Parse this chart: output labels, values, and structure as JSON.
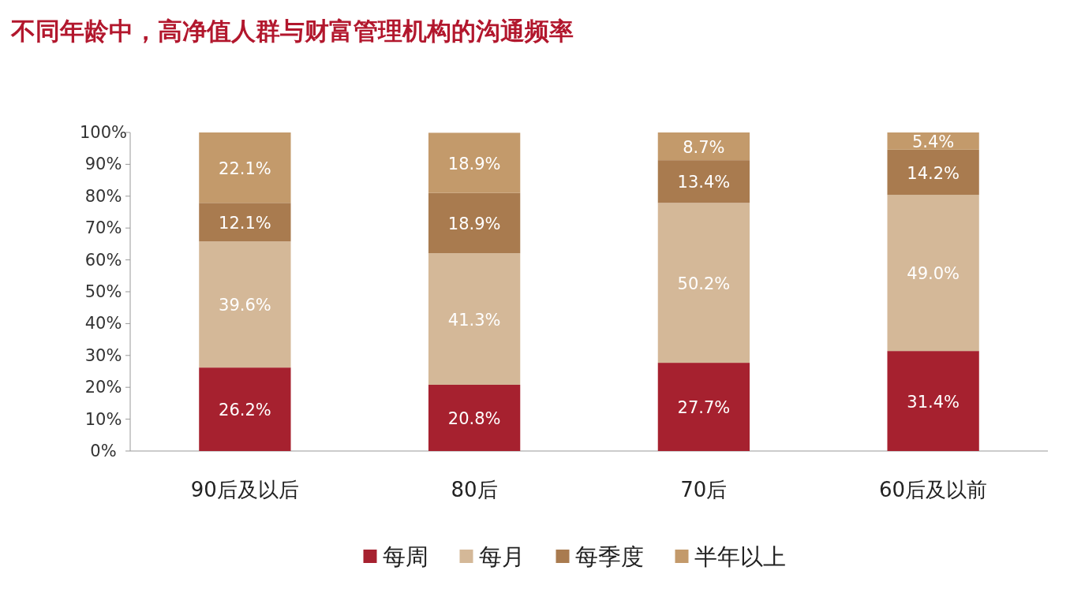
{
  "chart_data": {
    "type": "bar",
    "stacked": true,
    "title": "不同年龄中，高净值人群与财富管理机构的沟通频率",
    "categories": [
      "90后及以后",
      "80后",
      "70后",
      "60后及以前"
    ],
    "series": [
      {
        "name": "每周",
        "color": "#a6212f",
        "values": [
          26.2,
          20.8,
          27.7,
          31.4
        ],
        "value_labels": [
          "26.2%",
          "20.8%",
          "27.7%",
          "31.4%"
        ]
      },
      {
        "name": "每月",
        "color": "#d4b898",
        "values": [
          39.6,
          41.3,
          50.2,
          49.0
        ],
        "value_labels": [
          "39.6%",
          "41.3%",
          "50.2%",
          "49.0%"
        ]
      },
      {
        "name": "每季度",
        "color": "#a97b4f",
        "values": [
          12.1,
          18.9,
          13.4,
          14.2
        ],
        "value_labels": [
          "12.1%",
          "18.9%",
          "13.4%",
          "14.2%"
        ]
      },
      {
        "name": "半年以上",
        "color": "#c39a6b",
        "values": [
          22.1,
          18.9,
          8.7,
          5.4
        ],
        "value_labels": [
          "22.1%",
          "18.9%",
          "8.7%",
          "5.4%"
        ]
      }
    ],
    "ylim": [
      0,
      100
    ],
    "yticks": [
      {
        "value": 0,
        "label": "0%"
      },
      {
        "value": 10,
        "label": "10%"
      },
      {
        "value": 20,
        "label": "20%"
      },
      {
        "value": 30,
        "label": "30%"
      },
      {
        "value": 40,
        "label": "40%"
      },
      {
        "value": 50,
        "label": "50%"
      },
      {
        "value": 60,
        "label": "60%"
      },
      {
        "value": 70,
        "label": "70%"
      },
      {
        "value": 80,
        "label": "80%"
      },
      {
        "value": 90,
        "label": "90%"
      },
      {
        "value": 100,
        "label": "100%"
      }
    ],
    "grid": false,
    "legend": "bottom"
  }
}
